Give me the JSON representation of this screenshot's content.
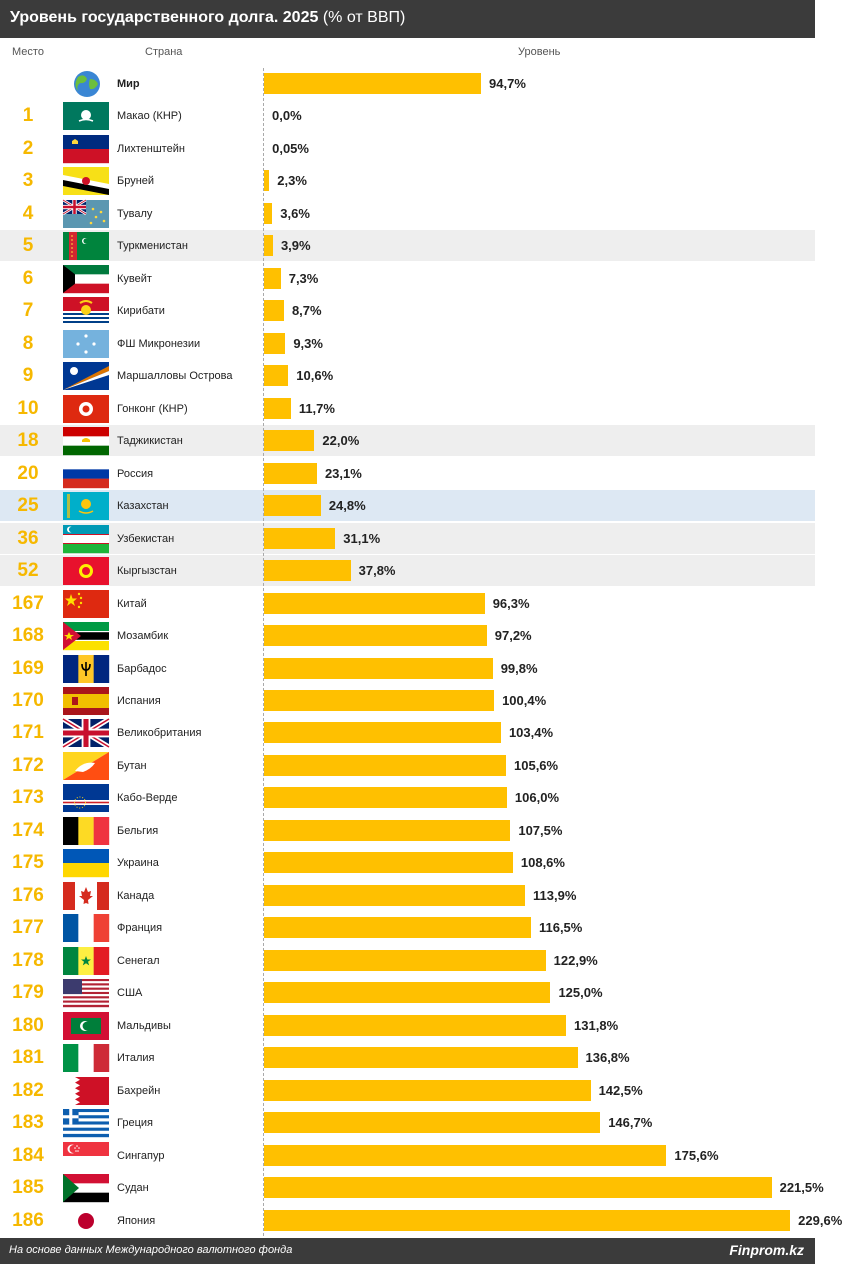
{
  "header": {
    "title": "Уровень государственного долга. 2025",
    "subtitle": "(% от ВВП)",
    "col_rank": "Место",
    "col_country": "Страна",
    "col_level": "Уровень"
  },
  "footer": {
    "source": "На основе данных Международного валютного фонда",
    "brand": "Finprom.kz"
  },
  "colors": {
    "bar": "#ffc000",
    "rank_text": "#f6b800",
    "header_bg": "#3b3b3b",
    "row_alt": "#eeeeee",
    "row_highlight": "#dde8f3"
  },
  "chart_data": {
    "type": "bar",
    "orientation": "horizontal",
    "title": "Уровень государственного долга. 2025",
    "subtitle": "(% от ВВП)",
    "xlabel": "Уровень",
    "xlim": [
      0,
      240
    ],
    "rows": [
      {
        "rank": "",
        "country": "Мир",
        "value": 94.7,
        "label": "94,7%",
        "flag": "world-globe"
      },
      {
        "rank": "1",
        "country": "Макао (КНР)",
        "value": 0.0,
        "label": "0,0%",
        "flag": "macao"
      },
      {
        "rank": "2",
        "country": "Лихтенштейн",
        "value": 0.05,
        "label": "0,05%",
        "flag": "liechtenstein"
      },
      {
        "rank": "3",
        "country": "Бруней",
        "value": 2.3,
        "label": "2,3%",
        "flag": "brunei"
      },
      {
        "rank": "4",
        "country": "Тувалу",
        "value": 3.6,
        "label": "3,6%",
        "flag": "tuvalu"
      },
      {
        "rank": "5",
        "country": "Туркменистан",
        "value": 3.9,
        "label": "3,9%",
        "flag": "turkmenistan"
      },
      {
        "rank": "6",
        "country": "Кувейт",
        "value": 7.3,
        "label": "7,3%",
        "flag": "kuwait"
      },
      {
        "rank": "7",
        "country": "Кирибати",
        "value": 8.7,
        "label": "8,7%",
        "flag": "kiribati"
      },
      {
        "rank": "8",
        "country": "ФШ Микронезии",
        "value": 9.3,
        "label": "9,3%",
        "flag": "micronesia"
      },
      {
        "rank": "9",
        "country": "Маршалловы Острова",
        "value": 10.6,
        "label": "10,6%",
        "flag": "marshall-islands"
      },
      {
        "rank": "10",
        "country": "Гонконг (КНР)",
        "value": 11.7,
        "label": "11,7%",
        "flag": "hong-kong"
      },
      {
        "rank": "18",
        "country": "Таджикистан",
        "value": 22.0,
        "label": "22,0%",
        "flag": "tajikistan"
      },
      {
        "rank": "20",
        "country": "Россия",
        "value": 23.1,
        "label": "23,1%",
        "flag": "russia"
      },
      {
        "rank": "25",
        "country": "Казахстан",
        "value": 24.8,
        "label": "24,8%",
        "flag": "kazakhstan"
      },
      {
        "rank": "36",
        "country": "Узбекистан",
        "value": 31.1,
        "label": "31,1%",
        "flag": "uzbekistan"
      },
      {
        "rank": "52",
        "country": "Кыргызстан",
        "value": 37.8,
        "label": "37,8%",
        "flag": "kyrgyzstan"
      },
      {
        "rank": "167",
        "country": "Китай",
        "value": 96.3,
        "label": "96,3%",
        "flag": "china"
      },
      {
        "rank": "168",
        "country": "Мозамбик",
        "value": 97.2,
        "label": "97,2%",
        "flag": "mozambique"
      },
      {
        "rank": "169",
        "country": "Барбадос",
        "value": 99.8,
        "label": "99,8%",
        "flag": "barbados"
      },
      {
        "rank": "170",
        "country": "Испания",
        "value": 100.4,
        "label": "100,4%",
        "flag": "spain"
      },
      {
        "rank": "171",
        "country": "Великобритания",
        "value": 103.4,
        "label": "103,4%",
        "flag": "united-kingdom"
      },
      {
        "rank": "172",
        "country": "Бутан",
        "value": 105.6,
        "label": "105,6%",
        "flag": "bhutan"
      },
      {
        "rank": "173",
        "country": "Кабо-Верде",
        "value": 106.0,
        "label": "106,0%",
        "flag": "cape-verde"
      },
      {
        "rank": "174",
        "country": "Бельгия",
        "value": 107.5,
        "label": "107,5%",
        "flag": "belgium"
      },
      {
        "rank": "175",
        "country": "Украина",
        "value": 108.6,
        "label": "108,6%",
        "flag": "ukraine"
      },
      {
        "rank": "176",
        "country": "Канада",
        "value": 113.9,
        "label": "113,9%",
        "flag": "canada"
      },
      {
        "rank": "177",
        "country": "Франция",
        "value": 116.5,
        "label": "116,5%",
        "flag": "france"
      },
      {
        "rank": "178",
        "country": "Сенегал",
        "value": 122.9,
        "label": "122,9%",
        "flag": "senegal"
      },
      {
        "rank": "179",
        "country": "США",
        "value": 125.0,
        "label": "125,0%",
        "flag": "usa"
      },
      {
        "rank": "180",
        "country": "Мальдивы",
        "value": 131.8,
        "label": "131,8%",
        "flag": "maldives"
      },
      {
        "rank": "181",
        "country": "Италия",
        "value": 136.8,
        "label": "136,8%",
        "flag": "italy"
      },
      {
        "rank": "182",
        "country": "Бахрейн",
        "value": 142.5,
        "label": "142,5%",
        "flag": "bahrain"
      },
      {
        "rank": "183",
        "country": "Греция",
        "value": 146.7,
        "label": "146,7%",
        "flag": "greece"
      },
      {
        "rank": "184",
        "country": "Сингапур",
        "value": 175.6,
        "label": "175,6%",
        "flag": "singapore"
      },
      {
        "rank": "185",
        "country": "Судан",
        "value": 221.5,
        "label": "221,5%",
        "flag": "sudan"
      },
      {
        "rank": "186",
        "country": "Япония",
        "value": 229.6,
        "label": "229,6%",
        "flag": "japan"
      }
    ],
    "shaded_rows": [
      "Туркменистан",
      "Таджикистан",
      "Узбекистан",
      "Кыргызстан"
    ],
    "highlighted_row": "Казахстан"
  }
}
